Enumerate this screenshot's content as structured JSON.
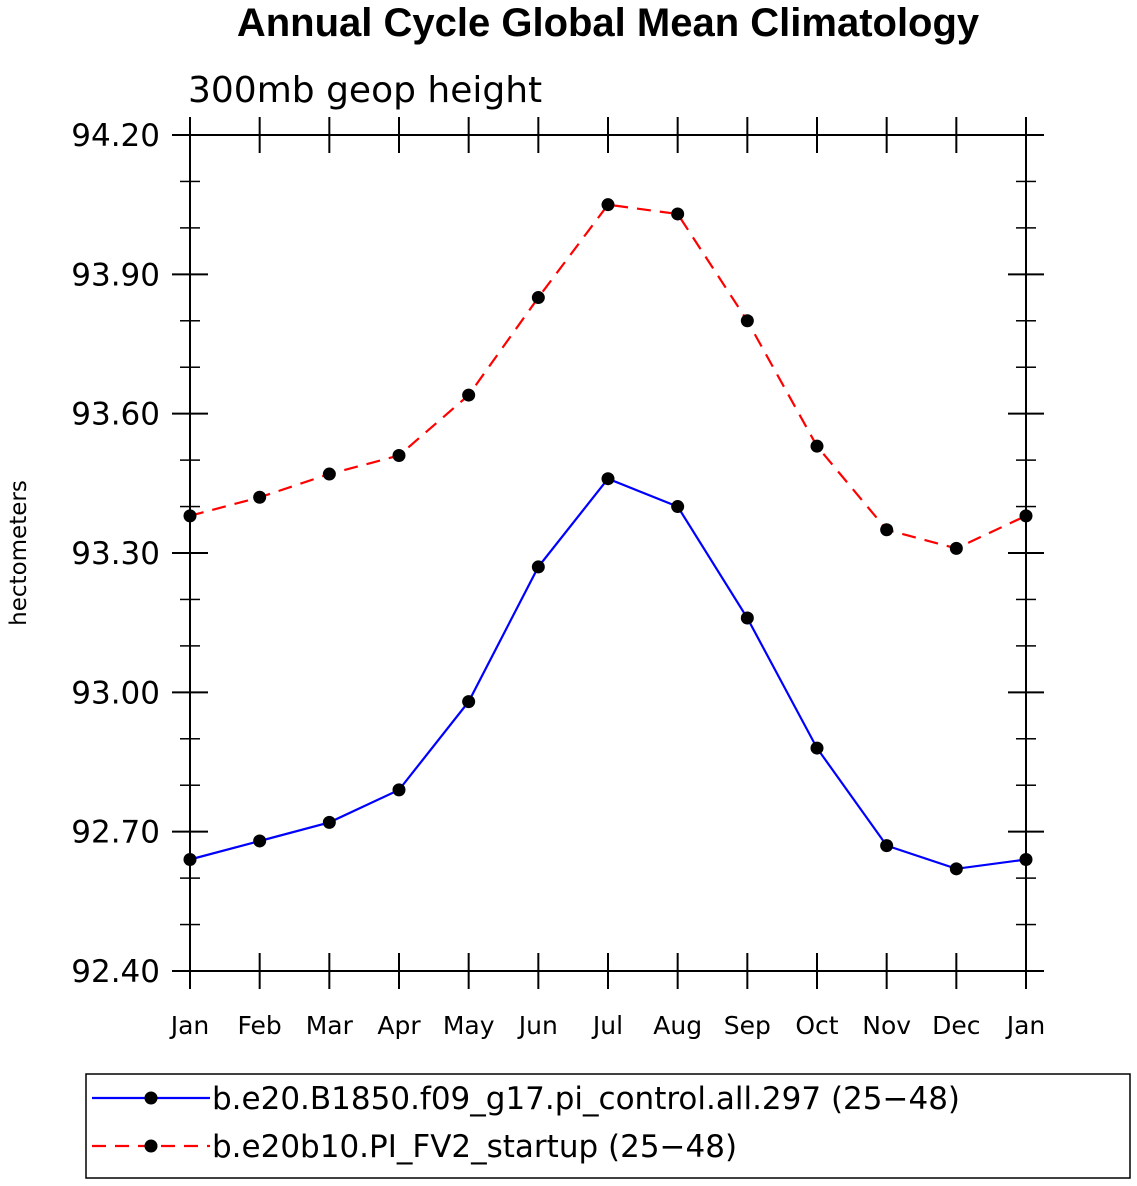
{
  "chart_data": {
    "type": "line",
    "title": "Annual Cycle Global Mean Climatology",
    "subtitle": "300mb geop height",
    "xlabel": "",
    "ylabel": "hectometers",
    "categories": [
      "Jan",
      "Feb",
      "Mar",
      "Apr",
      "May",
      "Jun",
      "Jul",
      "Aug",
      "Sep",
      "Oct",
      "Nov",
      "Dec",
      "Jan"
    ],
    "ylim": [
      92.4,
      94.2
    ],
    "yticks": [
      "92.40",
      "92.70",
      "93.00",
      "93.30",
      "93.60",
      "93.90",
      "94.20"
    ],
    "ytick_values": [
      92.4,
      92.7,
      93.0,
      93.3,
      93.6,
      93.9,
      94.2
    ],
    "grid": false,
    "legend_position": "bottom",
    "series": [
      {
        "name": "b.e20.B1850.f09_g17.pi_control.all.297 (25−48)",
        "color": "#0000ff",
        "dash": "solid",
        "marker": "filled-circle",
        "values": [
          92.64,
          92.68,
          92.72,
          92.79,
          92.98,
          93.27,
          93.46,
          93.4,
          93.16,
          92.88,
          92.67,
          92.62,
          92.64
        ]
      },
      {
        "name": "b.e20b10.PI_FV2_startup (25−48)",
        "color": "#ff0000",
        "dash": "dashed",
        "marker": "filled-circle",
        "values": [
          93.38,
          93.42,
          93.47,
          93.51,
          93.64,
          93.85,
          94.05,
          94.03,
          93.8,
          93.53,
          93.35,
          93.31,
          93.38
        ]
      }
    ]
  }
}
